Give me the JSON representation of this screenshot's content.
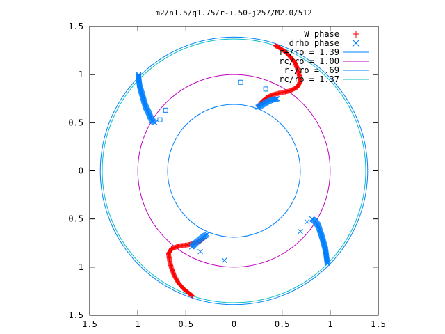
{
  "chart_data": {
    "type": "scatter",
    "title": "m2/n1.5/q1.75/r-+.50-j257/M2.0/512",
    "xlabel": "",
    "ylabel": "",
    "xlim": [
      -1.5,
      1.5
    ],
    "ylim": [
      -1.5,
      1.5
    ],
    "grid": false,
    "legend_position": "top-right",
    "x_ticks": [
      {
        "value": -1.5,
        "label": "1.5"
      },
      {
        "value": -1.0,
        "label": "1"
      },
      {
        "value": -0.5,
        "label": "0.5"
      },
      {
        "value": 0.0,
        "label": "0"
      },
      {
        "value": 0.5,
        "label": "0.5"
      },
      {
        "value": 1.0,
        "label": "1"
      },
      {
        "value": 1.5,
        "label": "1.5"
      }
    ],
    "y_ticks": [
      {
        "value": 1.5,
        "label": "1.5"
      },
      {
        "value": 1.0,
        "label": "1"
      },
      {
        "value": 0.5,
        "label": "0.5"
      },
      {
        "value": 0.0,
        "label": "0"
      },
      {
        "value": -0.5,
        "label": "0.5"
      },
      {
        "value": -1.0,
        "label": "1"
      },
      {
        "value": -1.5,
        "label": "1.5"
      }
    ],
    "series": [
      {
        "name": "W phase",
        "marker": "plus",
        "color": "#ff0000",
        "curves": [
          [
            [
              0.43,
              1.3
            ],
            [
              0.47,
              1.28
            ],
            [
              0.53,
              1.24
            ],
            [
              0.58,
              1.19
            ],
            [
              0.63,
              1.13
            ],
            [
              0.66,
              1.06
            ],
            [
              0.68,
              0.99
            ],
            [
              0.69,
              0.93
            ],
            [
              0.66,
              0.87
            ],
            [
              0.58,
              0.83
            ],
            [
              0.48,
              0.81
            ],
            [
              0.4,
              0.79
            ],
            [
              0.34,
              0.76
            ],
            [
              0.29,
              0.72
            ],
            [
              0.25,
              0.67
            ]
          ],
          [
            [
              -0.43,
              -1.3
            ],
            [
              -0.47,
              -1.27
            ],
            [
              -0.53,
              -1.22
            ],
            [
              -0.58,
              -1.16
            ],
            [
              -0.62,
              -1.09
            ],
            [
              -0.65,
              -1.01
            ],
            [
              -0.67,
              -0.93
            ],
            [
              -0.68,
              -0.86
            ],
            [
              -0.65,
              -0.81
            ],
            [
              -0.57,
              -0.78
            ],
            [
              -0.48,
              -0.77
            ],
            [
              -0.41,
              -0.75
            ],
            [
              -0.35,
              -0.73
            ],
            [
              -0.31,
              -0.7
            ]
          ]
        ]
      },
      {
        "name": "drho phase",
        "marker": "cross",
        "color": "#0080ff",
        "curves": [
          [
            [
              -0.99,
              1.0
            ],
            [
              -0.99,
              0.95
            ],
            [
              -0.98,
              0.88
            ],
            [
              -0.96,
              0.81
            ],
            [
              -0.94,
              0.74
            ],
            [
              -0.92,
              0.67
            ],
            [
              -0.89,
              0.61
            ],
            [
              -0.87,
              0.56
            ],
            [
              -0.85,
              0.52
            ],
            [
              -0.82,
              0.5
            ]
          ],
          [
            [
              0.25,
              0.66
            ],
            [
              0.3,
              0.69
            ],
            [
              0.35,
              0.72
            ],
            [
              0.4,
              0.74
            ],
            [
              0.45,
              0.75
            ]
          ],
          [
            [
              0.81,
              -0.5
            ],
            [
              0.84,
              -0.52
            ],
            [
              0.87,
              -0.56
            ],
            [
              0.89,
              -0.61
            ],
            [
              0.91,
              -0.67
            ],
            [
              0.93,
              -0.74
            ],
            [
              0.95,
              -0.81
            ],
            [
              0.96,
              -0.88
            ],
            [
              0.97,
              -0.96
            ]
          ],
          [
            [
              -0.28,
              -0.66
            ],
            [
              -0.31,
              -0.68
            ],
            [
              -0.35,
              -0.71
            ],
            [
              -0.4,
              -0.75
            ],
            [
              -0.44,
              -0.79
            ]
          ]
        ],
        "isolated": [
          [
            -0.35,
            -0.84
          ],
          [
            -0.1,
            -0.93
          ],
          [
            0.69,
            -0.63
          ],
          [
            0.76,
            -0.53
          ]
        ]
      },
      {
        "name": "",
        "marker": "square",
        "color": "#0080ff",
        "points": [
          [
            0.07,
            0.92
          ],
          [
            0.33,
            0.85
          ],
          [
            -0.71,
            0.63
          ],
          [
            -0.77,
            0.53
          ]
        ]
      },
      {
        "name": "r+/ro = 1.39",
        "type": "circle",
        "radius": 1.39,
        "color": "#0080ff"
      },
      {
        "name": "rc/ro = 1.00",
        "type": "circle",
        "radius": 1.0,
        "color": "#c000c0"
      },
      {
        "name": "r-/ro = .69",
        "type": "circle",
        "radius": 0.69,
        "color": "#0080ff"
      },
      {
        "name": "rc/ro = 1.37",
        "type": "circle",
        "radius": 1.37,
        "color": "#00c0c0"
      }
    ]
  }
}
